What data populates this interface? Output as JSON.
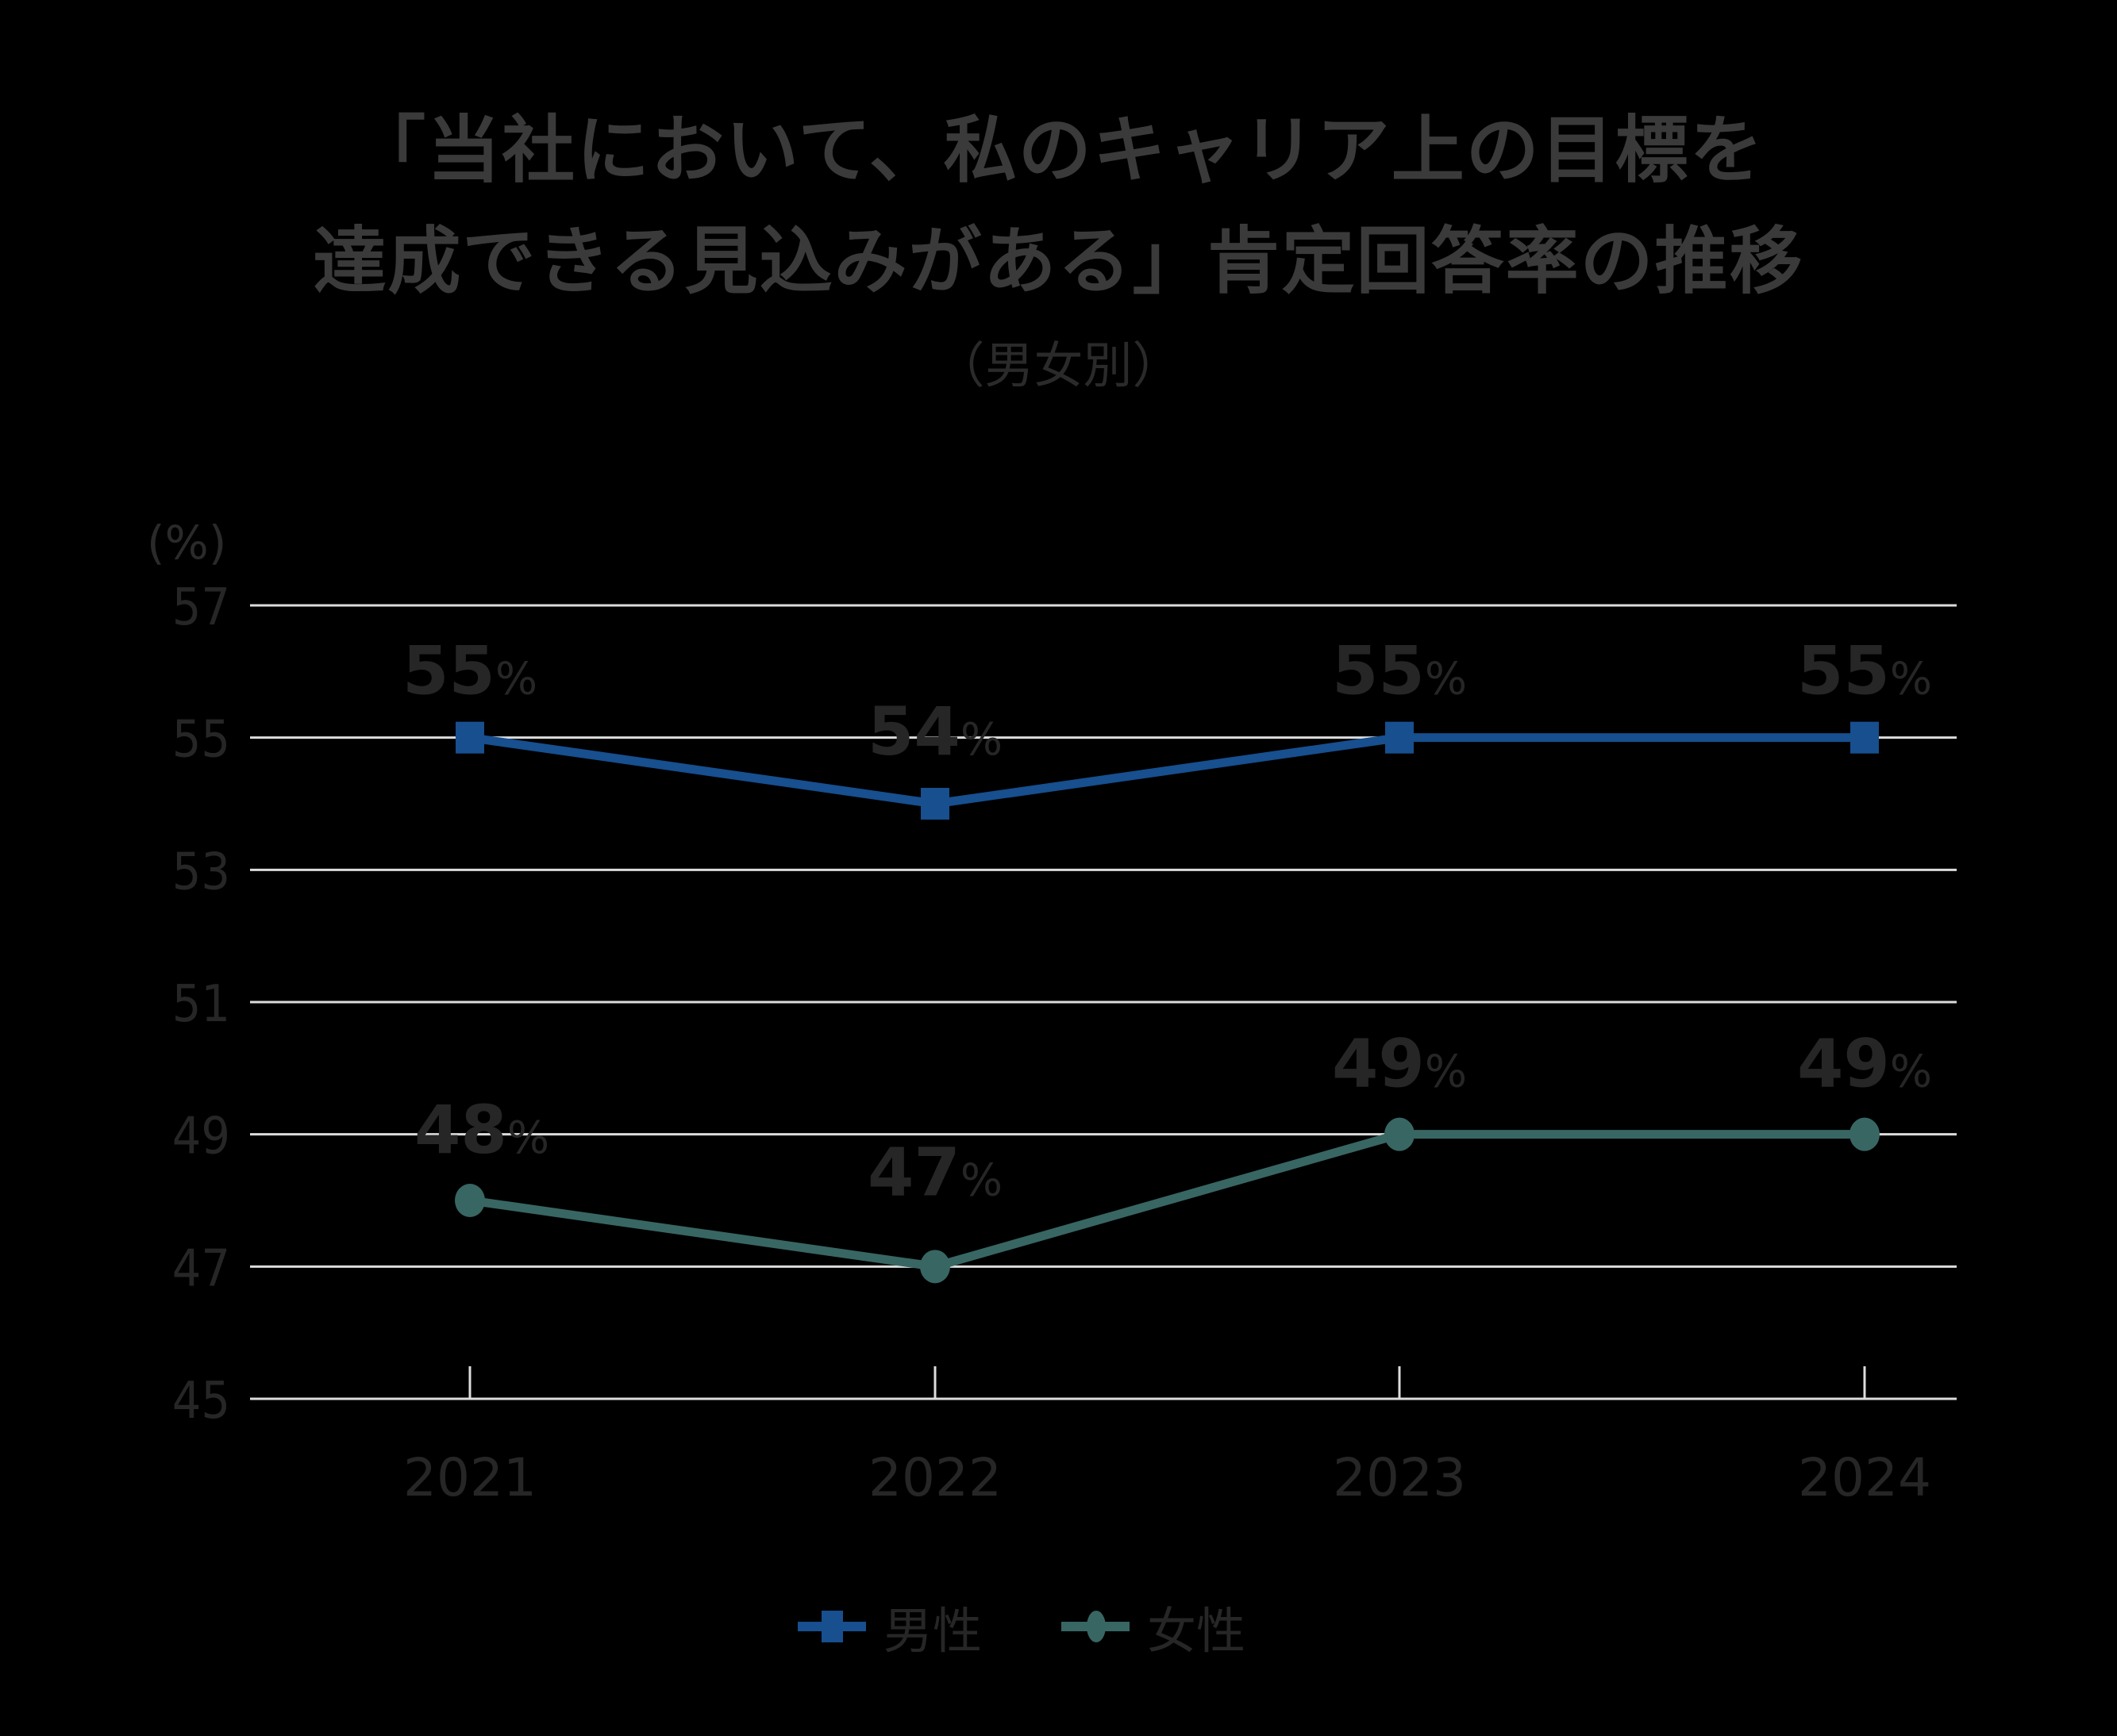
{
  "header": {
    "title_line1": "「当社において、私のキャリア上の目標を",
    "title_line2": "達成できる見込みがある」肯定回答率の推移",
    "subtitle": "（男女別）"
  },
  "axis": {
    "unit_label": "(%)"
  },
  "legend": {
    "items": [
      {
        "label": "男性",
        "color": "#174f8f",
        "marker": "square"
      },
      {
        "label": "女性",
        "color": "#386663",
        "marker": "circle"
      }
    ]
  },
  "chart_data": {
    "type": "line",
    "title": "「当社において、私のキャリア上の目標を達成できる見込みがある」肯定回答率の推移（男女別）",
    "xlabel": "",
    "ylabel": "(%)",
    "categories": [
      "2021",
      "2022",
      "2023",
      "2024"
    ],
    "series": [
      {
        "name": "男性",
        "values": [
          55,
          54,
          55,
          55
        ],
        "labels": [
          "55%",
          "54%",
          "55%",
          "55%"
        ],
        "color": "#174f8f",
        "marker": "square"
      },
      {
        "name": "女性",
        "values": [
          48,
          47,
          49,
          49
        ],
        "labels": [
          "48%",
          "47%",
          "49%",
          "49%"
        ],
        "color": "#386663",
        "marker": "circle"
      }
    ],
    "yticks": [
      45,
      47,
      49,
      51,
      53,
      55,
      57
    ],
    "ylim": [
      45,
      57
    ],
    "grid": true,
    "legend_position": "bottom"
  }
}
